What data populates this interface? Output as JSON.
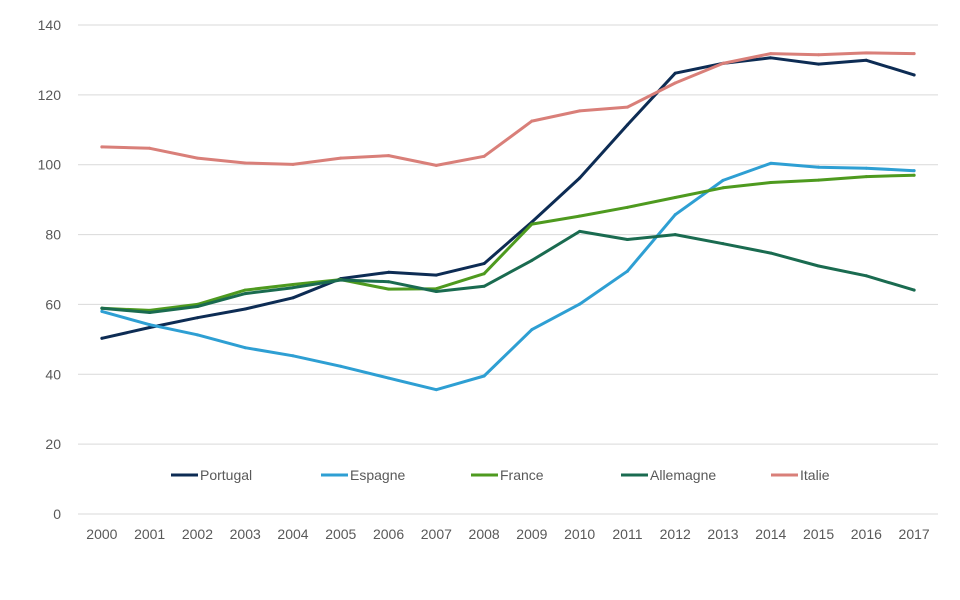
{
  "chart_data": {
    "type": "line",
    "title": "",
    "xlabel": "",
    "ylabel": "",
    "x": [
      "2000",
      "2001",
      "2002",
      "2003",
      "2004",
      "2005",
      "2006",
      "2007",
      "2008",
      "2009",
      "2010",
      "2011",
      "2012",
      "2013",
      "2014",
      "2015",
      "2016",
      "2017"
    ],
    "ylim": [
      0,
      140
    ],
    "yticks": [
      0,
      20,
      40,
      60,
      80,
      100,
      120,
      140
    ],
    "grid": true,
    "legend_position": "bottom-inside",
    "series": [
      {
        "name": "Portugal",
        "color": "#0d2c54",
        "values": [
          50.3,
          53.4,
          56.2,
          58.7,
          61.9,
          67.4,
          69.2,
          68.4,
          71.7,
          83.6,
          96.2,
          111.4,
          126.2,
          129.0,
          130.6,
          128.8,
          129.9,
          125.7
        ]
      },
      {
        "name": "Espagne",
        "color": "#2e9fd3",
        "values": [
          58.0,
          54.2,
          51.3,
          47.6,
          45.3,
          42.3,
          38.9,
          35.6,
          39.5,
          52.8,
          60.1,
          69.5,
          85.7,
          95.5,
          100.4,
          99.3,
          99.0,
          98.3
        ]
      },
      {
        "name": "France",
        "color": "#4e9a1f",
        "values": [
          58.9,
          58.3,
          60.0,
          64.1,
          65.7,
          67.1,
          64.4,
          64.5,
          68.8,
          83.0,
          85.3,
          87.8,
          90.6,
          93.4,
          94.9,
          95.6,
          96.6,
          97.0
        ]
      },
      {
        "name": "Allemagne",
        "color": "#1a6b50",
        "values": [
          58.9,
          57.7,
          59.4,
          63.1,
          64.8,
          67.0,
          66.5,
          63.7,
          65.2,
          72.6,
          80.9,
          78.6,
          80.0,
          77.4,
          74.7,
          71.0,
          68.2,
          64.1
        ]
      },
      {
        "name": "Italie",
        "color": "#d97f79",
        "values": [
          105.1,
          104.7,
          101.9,
          100.5,
          100.1,
          101.9,
          102.6,
          99.8,
          102.4,
          112.5,
          115.4,
          116.5,
          123.4,
          129.0,
          131.8,
          131.5,
          132.0,
          131.8
        ]
      }
    ]
  }
}
